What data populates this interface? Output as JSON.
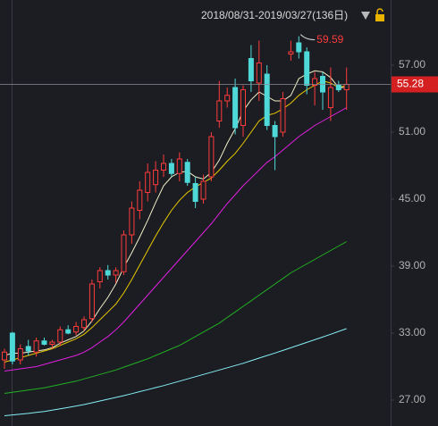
{
  "chart_data": {
    "type": "candlestick",
    "title": "2018/08/31-2019/03/27(136日)",
    "ylim": [
      24.68,
      62.84
    ],
    "yticks": [
      {
        "value": 27,
        "label": "27.00"
      },
      {
        "value": 33,
        "label": "33.00"
      },
      {
        "value": 39,
        "label": "39.00"
      },
      {
        "value": 45,
        "label": "45.00"
      },
      {
        "value": 51,
        "label": "51.00"
      },
      {
        "value": 57,
        "label": "57.00"
      }
    ],
    "up_color": "#ff3b3b",
    "down_color": "#4fd8d8",
    "open": [
      30.6,
      33.0,
      30.6,
      31.8,
      31.3,
      32.3,
      32.0,
      32.2,
      33.3,
      33.1,
      33.5,
      34.3,
      37.6,
      38.6,
      38.2,
      38.5,
      41.8,
      44.0,
      45.6,
      46.3,
      47.6,
      48.2,
      47.3,
      48.3,
      46.4,
      45.0,
      47.0,
      52.0,
      53.8,
      55.0,
      51.6,
      57.6,
      55.4,
      56.2,
      51.6,
      51.0,
      58.0,
      59.0,
      58.2,
      55.2,
      56.0,
      53.2,
      55.2,
      54.8
    ],
    "high": [
      31.6,
      33.1,
      32.0,
      32.4,
      32.6,
      32.6,
      32.4,
      33.6,
      33.7,
      34.0,
      34.5,
      37.8,
      38.9,
      39.1,
      38.9,
      42.2,
      44.8,
      46.6,
      48.2,
      48.4,
      49.0,
      48.6,
      49.2,
      48.6,
      47.0,
      47.2,
      51.0,
      55.6,
      55.0,
      55.8,
      55.2,
      58.8,
      59.2,
      57.0,
      52.0,
      54.6,
      59.2,
      59.59,
      58.6,
      56.4,
      56.4,
      56.8,
      55.6,
      56.8
    ],
    "low": [
      29.8,
      30.2,
      30.2,
      31.0,
      30.9,
      31.9,
      31.6,
      31.9,
      32.9,
      32.8,
      33.2,
      34.0,
      37.0,
      37.8,
      37.5,
      38.2,
      41.0,
      43.2,
      44.8,
      45.6,
      47.0,
      47.0,
      46.6,
      46.2,
      44.2,
      44.6,
      46.6,
      51.4,
      53.2,
      50.8,
      50.6,
      54.6,
      53.8,
      51.2,
      47.6,
      50.6,
      57.4,
      57.6,
      54.4,
      53.4,
      53.0,
      52.0,
      54.6,
      53.0
    ],
    "close": [
      31.3,
      30.5,
      31.6,
      31.4,
      32.3,
      32.0,
      32.2,
      33.3,
      33.0,
      33.6,
      34.2,
      37.4,
      38.6,
      38.2,
      38.6,
      41.8,
      44.2,
      45.8,
      47.4,
      47.6,
      48.2,
      47.3,
      48.6,
      46.5,
      44.8,
      46.6,
      50.6,
      53.8,
      54.3,
      51.4,
      54.8,
      55.6,
      57.2,
      51.6,
      50.6,
      54.0,
      58.2,
      58.2,
      55.2,
      55.8,
      54.6,
      55.0,
      54.8,
      55.28
    ],
    "series": [
      {
        "color": "#f2f0c8",
        "values": [
          31.0,
          31.2,
          31.2,
          31.3,
          31.4,
          31.5,
          31.7,
          32.1,
          32.4,
          32.7,
          33.2,
          34.1,
          35.2,
          36.2,
          37.4,
          38.9,
          40.2,
          41.6,
          43.1,
          44.7,
          46.2,
          47.0,
          47.4,
          47.5,
          47.0,
          46.8,
          47.4,
          48.5,
          50.0,
          51.3,
          52.9,
          53.9,
          54.6,
          54.2,
          53.8,
          53.8,
          54.3,
          55.8,
          56.2,
          56.5,
          56.4,
          55.9,
          55.0,
          55.0
        ]
      },
      {
        "color": "#e8c800",
        "values": [
          30.4,
          30.6,
          30.8,
          31.0,
          31.2,
          31.4,
          31.6,
          31.9,
          32.2,
          32.5,
          32.9,
          33.5,
          34.2,
          34.9,
          35.6,
          36.6,
          37.8,
          39.1,
          40.4,
          41.7,
          42.9,
          44.0,
          44.9,
          45.6,
          46.1,
          46.5,
          46.9,
          47.6,
          48.4,
          49.1,
          50.0,
          51.0,
          52.0,
          52.5,
          52.7,
          53.1,
          53.6,
          54.3,
          54.8,
          55.2,
          55.6,
          55.4,
          55.0,
          55.2
        ]
      },
      {
        "color": "#e020e0",
        "values": [
          29.6,
          29.7,
          29.8,
          29.9,
          30.0,
          30.2,
          30.4,
          30.6,
          30.8,
          31.0,
          31.3,
          31.7,
          32.2,
          32.7,
          33.3,
          34.0,
          34.8,
          35.6,
          36.4,
          37.2,
          38.0,
          38.8,
          39.6,
          40.4,
          41.2,
          42.0,
          42.8,
          43.7,
          44.6,
          45.4,
          46.2,
          46.9,
          47.6,
          48.3,
          48.8,
          49.4,
          50.0,
          50.6,
          51.1,
          51.6,
          52.0,
          52.4,
          52.8,
          53.2
        ]
      },
      {
        "color": "#22b022",
        "values": [
          27.6,
          27.7,
          27.8,
          27.9,
          28.0,
          28.1,
          28.25,
          28.4,
          28.55,
          28.7,
          28.9,
          29.1,
          29.3,
          29.5,
          29.7,
          29.95,
          30.2,
          30.45,
          30.7,
          31.0,
          31.3,
          31.6,
          31.9,
          32.3,
          32.7,
          33.1,
          33.5,
          33.9,
          34.4,
          34.9,
          35.4,
          35.9,
          36.4,
          36.9,
          37.4,
          37.9,
          38.4,
          38.8,
          39.2,
          39.6,
          40.0,
          40.4,
          40.8,
          41.2
        ]
      },
      {
        "color": "#86eef5",
        "values": [
          25.6,
          25.67,
          25.74,
          25.81,
          25.9,
          25.98,
          26.1,
          26.22,
          26.34,
          26.47,
          26.6,
          26.76,
          26.92,
          27.08,
          27.24,
          27.4,
          27.58,
          27.76,
          27.94,
          28.12,
          28.3,
          28.5,
          28.7,
          28.9,
          29.1,
          29.3,
          29.5,
          29.7,
          29.9,
          30.1,
          30.3,
          30.53,
          30.76,
          30.99,
          31.22,
          31.45,
          31.69,
          31.93,
          32.17,
          32.41,
          32.65,
          32.9,
          33.15,
          33.4
        ]
      }
    ],
    "max_annotation": 59.59,
    "last_price": 55.28
  }
}
